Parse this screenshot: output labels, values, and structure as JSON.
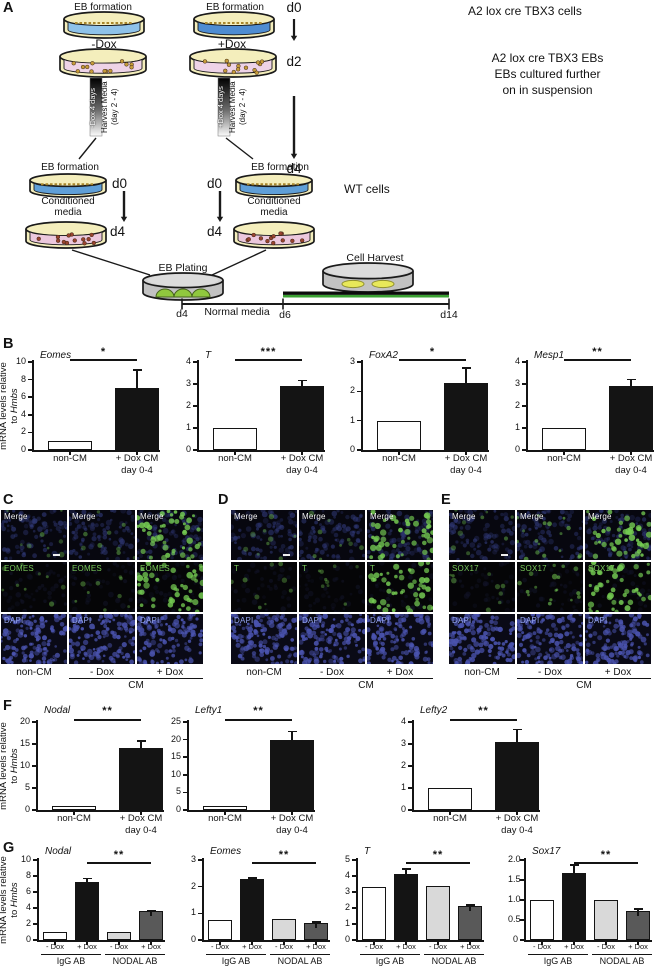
{
  "panel_labels": {
    "a": "A",
    "b": "B",
    "f": "F",
    "g": "G"
  },
  "panel_a": {
    "eb_formation": "EB formation",
    "minus_dox": "-Dox",
    "plus_dox": "+Dox",
    "d0": "d0",
    "d2": "d2",
    "d4": "d4",
    "d6": "d6",
    "d14": "d14",
    "cells_label": "A2 lox cre TBX3 cells",
    "ebs_caption_line1": "A2 lox cre TBX3 EBs",
    "ebs_caption_line2": "EBs cultured further",
    "ebs_caption_line3": "on in suspension",
    "gradient_left_line1": "-Dox 4 days",
    "gradient_right_line1": "+Dox 4 days",
    "harvest_media": "Harvest Media",
    "harvest_days": "(day 2 - 4)",
    "wt_cells": "WT cells",
    "conditioned_line1": "Conditioned",
    "conditioned_line2": "media",
    "eb_plating": "EB Plating",
    "cell_harvest": "Cell Harvest",
    "normal_media": "Normal media"
  },
  "axis_label": {
    "line1": "mRNA levels relative",
    "line2_prefix": "to ",
    "line2_gene": "Hmbs"
  },
  "chart_data": [
    {
      "id": "b-eomes",
      "row": "B",
      "type": "bar",
      "title": "Eomes",
      "ylim": [
        0,
        10
      ],
      "ytick_labels": [
        "0",
        "2",
        "4",
        "6",
        "8",
        "10"
      ],
      "bars": [
        {
          "label": "non-CM",
          "value": 1,
          "fill": "#ffffff"
        },
        {
          "label": "+ Dox CM",
          "sublabel": "day 0-4",
          "value": 7,
          "error_up": 2.1,
          "fill": "#141414"
        }
      ],
      "sig": "*",
      "sig_bars": [
        0,
        1
      ],
      "show_ylabel": true
    },
    {
      "id": "b-t",
      "row": "B",
      "type": "bar",
      "title": "T",
      "ylim": [
        0,
        4
      ],
      "ytick_labels": [
        "0",
        "1",
        "2",
        "3",
        "4"
      ],
      "bars": [
        {
          "label": "non-CM",
          "value": 1,
          "fill": "#ffffff"
        },
        {
          "label": "+ Dox CM",
          "sublabel": "day 0-4",
          "value": 2.9,
          "error_up": 0.25,
          "fill": "#141414"
        }
      ],
      "sig": "***",
      "sig_bars": [
        0,
        1
      ]
    },
    {
      "id": "b-foxa2",
      "row": "B",
      "type": "bar",
      "title": "FoxA2",
      "ylim": [
        0,
        3
      ],
      "ytick_labels": [
        "0",
        "1",
        "2",
        "3"
      ],
      "bars": [
        {
          "label": "non-CM",
          "value": 1,
          "fill": "#ffffff"
        },
        {
          "label": "+ Dox CM",
          "sublabel": "day 0-4",
          "value": 2.3,
          "error_up": 0.5,
          "fill": "#141414"
        }
      ],
      "sig": "*",
      "sig_bars": [
        0,
        1
      ]
    },
    {
      "id": "b-mesp1",
      "row": "B",
      "type": "bar",
      "title": "Mesp1",
      "ylim": [
        0,
        4
      ],
      "ytick_labels": [
        "0",
        "1",
        "2",
        "3",
        "4"
      ],
      "bars": [
        {
          "label": "non-CM",
          "value": 1,
          "fill": "#ffffff"
        },
        {
          "label": "+ Dox CM",
          "sublabel": "day 0-4",
          "value": 2.9,
          "error_up": 0.3,
          "fill": "#141414"
        }
      ],
      "sig": "**",
      "sig_bars": [
        0,
        1
      ]
    },
    {
      "id": "f-nodal",
      "row": "F",
      "type": "bar",
      "title": "Nodal",
      "ylim": [
        0,
        20
      ],
      "ytick_labels": [
        "0",
        "5",
        "10",
        "15",
        "20"
      ],
      "bars": [
        {
          "label": "non-CM",
          "value": 1,
          "fill": "#ffffff"
        },
        {
          "label": "+ Dox CM",
          "sublabel": "day 0-4",
          "value": 14,
          "error_up": 1.7,
          "fill": "#141414"
        }
      ],
      "sig": "**",
      "sig_bars": [
        0,
        1
      ],
      "show_ylabel": true
    },
    {
      "id": "f-lefty1",
      "row": "F",
      "type": "bar",
      "title": "Lefty1",
      "ylim": [
        0,
        25
      ],
      "ytick_labels": [
        "0",
        "5",
        "10",
        "15",
        "20",
        "25"
      ],
      "bars": [
        {
          "label": "non-CM",
          "value": 1,
          "fill": "#ffffff"
        },
        {
          "label": "+ Dox CM",
          "sublabel": "day 0-4",
          "value": 19.8,
          "error_up": 2.5,
          "fill": "#141414"
        }
      ],
      "sig": "**",
      "sig_bars": [
        0,
        1
      ]
    },
    {
      "id": "f-lefty2",
      "row": "F",
      "type": "bar",
      "title": "Lefty2",
      "ylim": [
        0,
        4
      ],
      "ytick_labels": [
        "0",
        "1",
        "2",
        "3",
        "4"
      ],
      "bars": [
        {
          "label": "non-CM",
          "value": 1,
          "fill": "#ffffff"
        },
        {
          "label": "+ Dox CM",
          "sublabel": "day 0-4",
          "value": 3.1,
          "error_up": 0.55,
          "fill": "#141414"
        }
      ],
      "sig": "**",
      "sig_bars": [
        0,
        1
      ]
    },
    {
      "id": "g-nodal",
      "row": "G",
      "type": "bar",
      "title": "Nodal",
      "ylim": [
        0,
        10
      ],
      "ytick_labels": [
        "0",
        "2",
        "4",
        "6",
        "8",
        "10"
      ],
      "bars": [
        {
          "label": "- Dox",
          "value": 1,
          "fill": "#ffffff"
        },
        {
          "label": "+ Dox",
          "value": 7.3,
          "error_up": 0.4,
          "fill": "#141414"
        },
        {
          "label": "- Dox",
          "value": 1,
          "fill": "#d9d9d9"
        },
        {
          "label": "+ Dox",
          "value": 3.6,
          "error_up": 0.1,
          "fill": "#595959"
        }
      ],
      "sig": "**",
      "sig_bars": [
        1,
        3
      ],
      "groups": [
        {
          "label": "IgG AB",
          "from": 0,
          "to": 1
        },
        {
          "label": "NODAL AB",
          "from": 2,
          "to": 3
        }
      ],
      "show_ylabel": true
    },
    {
      "id": "g-eomes",
      "row": "G",
      "type": "bar",
      "title": "Eomes",
      "ylim": [
        0,
        3
      ],
      "ytick_labels": [
        "0",
        "1",
        "2",
        "3"
      ],
      "bars": [
        {
          "label": "- Dox",
          "value": 0.75,
          "fill": "#ffffff"
        },
        {
          "label": "+ Dox",
          "value": 2.27,
          "error_up": 0.06,
          "fill": "#141414"
        },
        {
          "label": "- Dox",
          "value": 0.77,
          "fill": "#d9d9d9"
        },
        {
          "label": "+ Dox",
          "value": 0.62,
          "error_up": 0.06,
          "fill": "#595959"
        }
      ],
      "sig": "**",
      "sig_bars": [
        1,
        3
      ],
      "groups": [
        {
          "label": "IgG AB",
          "from": 0,
          "to": 1
        },
        {
          "label": "NODAL AB",
          "from": 2,
          "to": 3
        }
      ]
    },
    {
      "id": "g-t",
      "row": "G",
      "type": "bar",
      "title": "T",
      "ylim": [
        0,
        5
      ],
      "ytick_labels": [
        "0",
        "1",
        "2",
        "3",
        "4",
        "5"
      ],
      "bars": [
        {
          "label": "- Dox",
          "value": 3.3,
          "fill": "#ffffff"
        },
        {
          "label": "+ Dox",
          "value": 4.1,
          "error_up": 0.35,
          "fill": "#141414"
        },
        {
          "label": "- Dox",
          "value": 3.35,
          "fill": "#d9d9d9"
        },
        {
          "label": "+ Dox",
          "value": 2.15,
          "error_up": 0.05,
          "fill": "#595959"
        }
      ],
      "sig": "**",
      "sig_bars": [
        1,
        3
      ],
      "groups": [
        {
          "label": "IgG AB",
          "from": 0,
          "to": 1
        },
        {
          "label": "NODAL AB",
          "from": 2,
          "to": 3
        }
      ]
    },
    {
      "id": "g-sox17",
      "row": "G",
      "type": "bar",
      "title": "Sox17",
      "ylim": [
        0,
        2
      ],
      "ytick_labels": [
        "0",
        "0.5",
        "1.0",
        "1.5",
        "2.0"
      ],
      "bars": [
        {
          "label": "- Dox",
          "value": 1,
          "fill": "#ffffff"
        },
        {
          "label": "+ Dox",
          "value": 1.68,
          "error_up": 0.2,
          "fill": "#141414"
        },
        {
          "label": "- Dox",
          "value": 1,
          "fill": "#d9d9d9"
        },
        {
          "label": "+ Dox",
          "value": 0.72,
          "error_up": 0.05,
          "fill": "#595959"
        }
      ],
      "sig": "**",
      "sig_bars": [
        1,
        3
      ],
      "groups": [
        {
          "label": "IgG AB",
          "from": 0,
          "to": 1
        },
        {
          "label": "NODAL AB",
          "from": 2,
          "to": 3
        }
      ]
    }
  ],
  "micro_panels": [
    {
      "label": "C",
      "rows": [
        {
          "name": "Merge",
          "label_color": "#f2f2f2"
        },
        {
          "name": "EOMES",
          "label_color": "#79c95a"
        },
        {
          "name": "DAPI",
          "label_color": "#93a4ec"
        }
      ],
      "columns": [
        "non-CM",
        "- Dox",
        "+ Dox"
      ],
      "cm_label": "CM",
      "green_levels": [
        [
          1,
          1,
          3
        ],
        [
          1,
          1,
          3
        ],
        [
          0,
          0,
          0
        ]
      ]
    },
    {
      "label": "D",
      "rows": [
        {
          "name": "Merge",
          "label_color": "#f2f2f2"
        },
        {
          "name": "T",
          "label_color": "#79c95a"
        },
        {
          "name": "DAPI",
          "label_color": "#93a4ec"
        }
      ],
      "columns": [
        "non-CM",
        "- Dox",
        "+ Dox"
      ],
      "cm_label": "CM",
      "green_levels": [
        [
          1,
          1,
          3
        ],
        [
          1,
          1,
          3
        ],
        [
          0,
          0,
          0
        ]
      ]
    },
    {
      "label": "E",
      "rows": [
        {
          "name": "Merge",
          "label_color": "#f2f2f2"
        },
        {
          "name": "SOX17",
          "label_color": "#79c95a"
        },
        {
          "name": "DAPI",
          "label_color": "#93a4ec"
        }
      ],
      "columns": [
        "non-CM",
        "- Dox",
        "+ Dox"
      ],
      "cm_label": "CM",
      "green_levels": [
        [
          1,
          2,
          3
        ],
        [
          1,
          2,
          3
        ],
        [
          0,
          0,
          0
        ]
      ]
    }
  ],
  "colors": {
    "bar_white": "#ffffff",
    "bar_black": "#141414",
    "bar_light_gray": "#d9d9d9",
    "bar_dark_gray": "#595959",
    "signal_green": "#74ca52",
    "dapi_blue": "#4a53ae",
    "timeline_green": "#3aa032",
    "dish_cream": "#f4eebc",
    "media_blue_light": "#8ec2ea",
    "media_blue_dark": "#4e8cd2",
    "media_pink": "#eed3e7"
  }
}
